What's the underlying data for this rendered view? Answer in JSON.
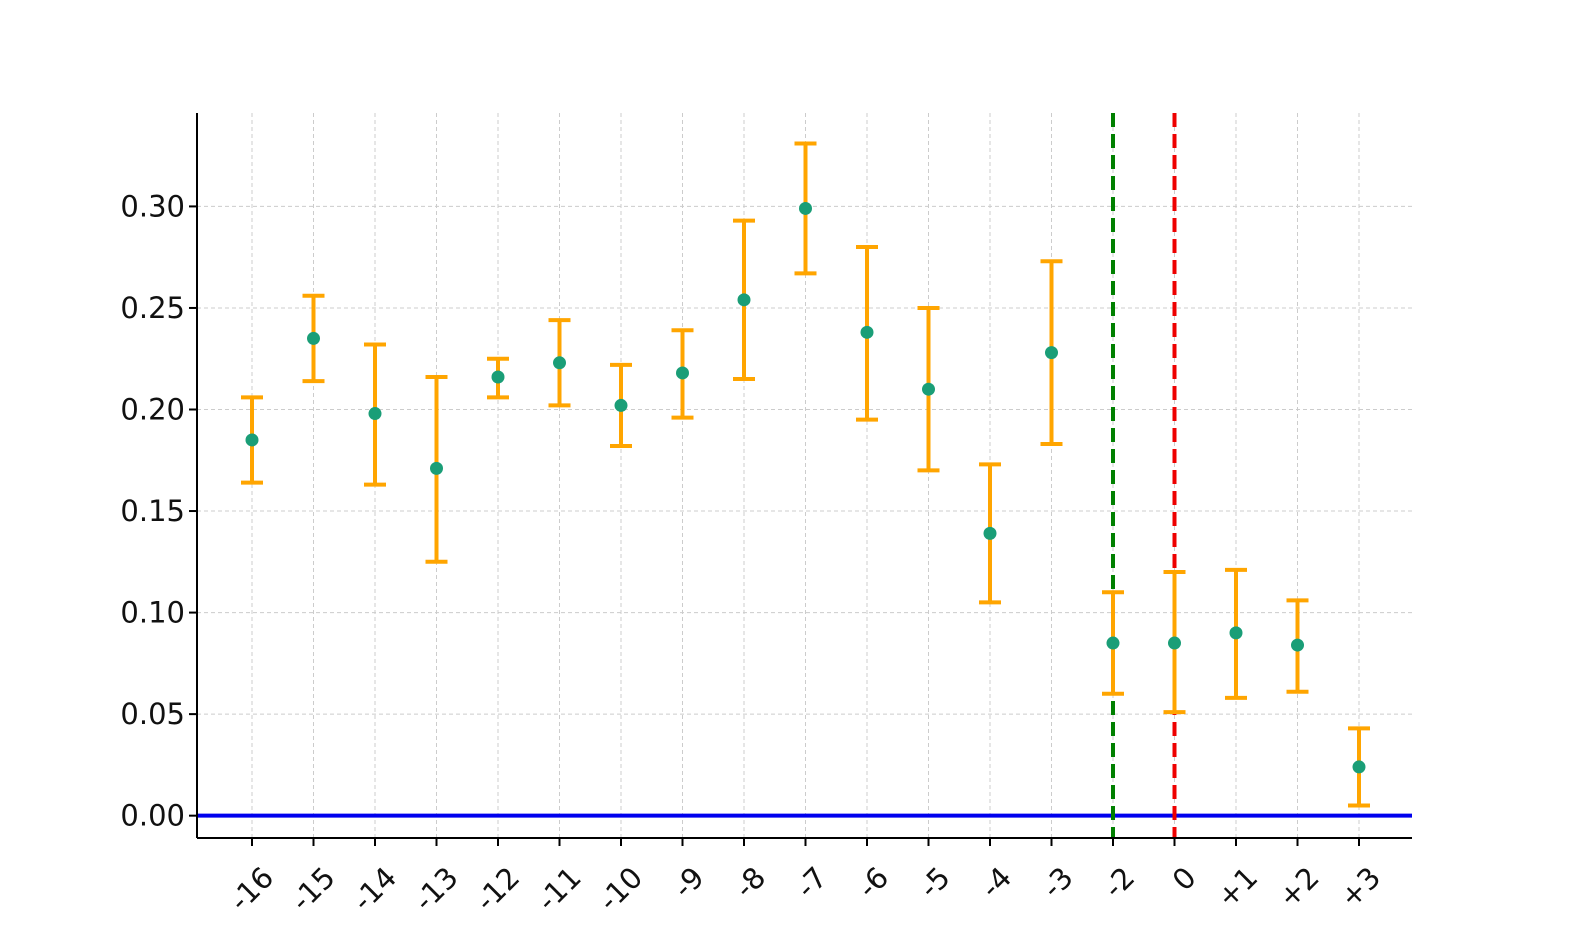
{
  "chart_data": {
    "type": "scatter",
    "title": "",
    "xlabel": "",
    "ylabel": "",
    "categories": [
      "-16",
      "-15",
      "-14",
      "-13",
      "-12",
      "-11",
      "-10",
      "-9",
      "-8",
      "-7",
      "-6",
      "-5",
      "-4",
      "-3",
      "-2",
      "0",
      "+1",
      "+2",
      "+3"
    ],
    "ylim": [
      -0.011,
      0.346
    ],
    "yticks": [
      "0.00",
      "0.05",
      "0.10",
      "0.15",
      "0.20",
      "0.25",
      "0.30"
    ],
    "grid": true,
    "series": [
      {
        "values": [
          0.185,
          0.235,
          0.198,
          0.171,
          0.216,
          0.223,
          0.202,
          0.218,
          0.254,
          0.299,
          0.238,
          0.21,
          0.139,
          0.228,
          0.085,
          0.085,
          0.09,
          0.084,
          0.024
        ],
        "lower": [
          0.164,
          0.214,
          0.163,
          0.125,
          0.206,
          0.202,
          0.182,
          0.196,
          0.215,
          0.267,
          0.195,
          0.17,
          0.105,
          0.183,
          0.06,
          0.051,
          0.058,
          0.061,
          0.005
        ],
        "upper": [
          0.206,
          0.256,
          0.232,
          0.216,
          0.225,
          0.244,
          0.222,
          0.239,
          0.293,
          0.331,
          0.28,
          0.25,
          0.173,
          0.273,
          0.11,
          0.12,
          0.121,
          0.106,
          0.043
        ],
        "marker_color": "#1a9e77",
        "errorbar_color": "#ffa500"
      }
    ],
    "reference_lines": [
      {
        "axis": "y",
        "value": 0,
        "color": "#0000ee",
        "style": "solid"
      },
      {
        "axis": "x",
        "category": "-2",
        "color": "#008000",
        "style": "dashed"
      },
      {
        "axis": "x",
        "category": "0",
        "color": "#ee0000",
        "style": "dashed"
      }
    ]
  }
}
